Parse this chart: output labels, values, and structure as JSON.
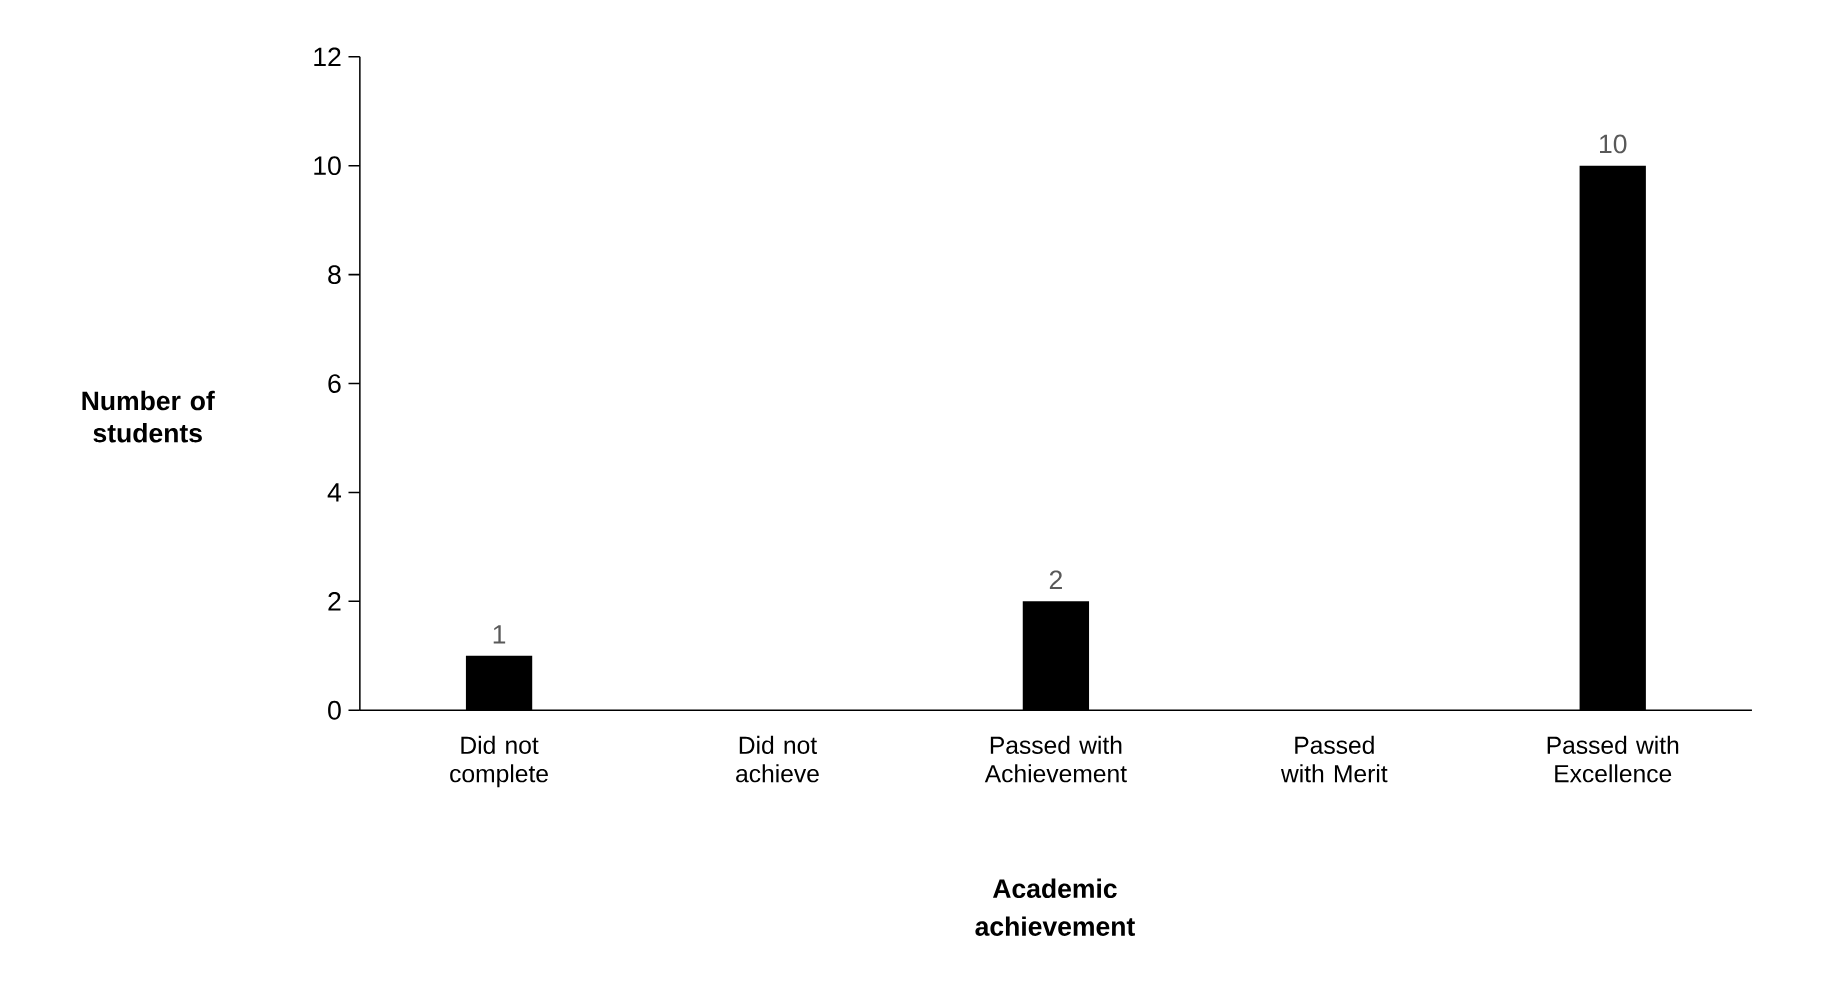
{
  "chart_data": {
    "type": "bar",
    "xlabel": "Academic achievement",
    "ylabel": "Number of students",
    "categories": [
      "Did not complete",
      "Did not achieve",
      "Passed with Achievement",
      "Passed with Merit",
      "Passed with Excellence"
    ],
    "values": [
      1,
      0,
      2,
      0,
      10
    ],
    "value_labels": [
      "1",
      null,
      "2",
      null,
      "10"
    ],
    "color": "#000000",
    "ylim": [
      0,
      12
    ],
    "yticks": [
      0,
      2,
      4,
      6,
      8,
      10,
      12
    ]
  }
}
